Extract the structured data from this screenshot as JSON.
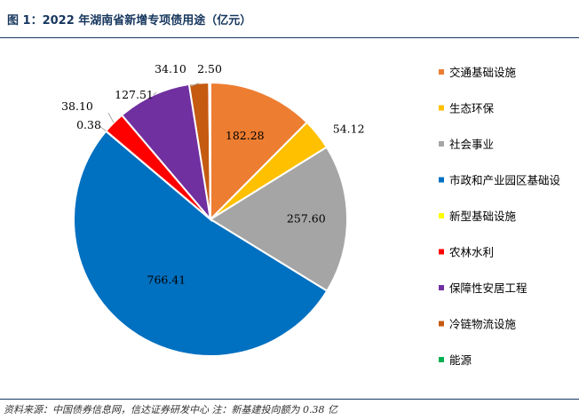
{
  "header": {
    "title": "图 1：2022 年湖南省新增专项债用途（亿元）"
  },
  "footer": {
    "source": "资料来源：中国债券信息网，信达证券研发中心  注：新基建投向额为 0.38 亿"
  },
  "chart_data": {
    "type": "pie",
    "title": "图 1：2022 年湖南省新增专项债用途（亿元）",
    "legend_position": "right",
    "slices": [
      {
        "name": "交通基础设施",
        "value": 182.28,
        "label": "182.28",
        "color": "#ed7d31"
      },
      {
        "name": "生态环保",
        "value": 54.12,
        "label": "54.12",
        "color": "#ffc000"
      },
      {
        "name": "社会事业",
        "value": 257.6,
        "label": "257.60",
        "color": "#a5a5a5"
      },
      {
        "name": "市政和产业园区基础设施",
        "value": 766.41,
        "label": "766.41",
        "color": "#0070c0"
      },
      {
        "name": "新型基础设施",
        "value": 0.38,
        "label": "0.38",
        "color": "#ffff00"
      },
      {
        "name": "农林水利",
        "value": 38.1,
        "label": "38.10",
        "color": "#ff0000"
      },
      {
        "name": "保障性安居工程",
        "value": 127.51,
        "label": "127.51",
        "color": "#7030a0"
      },
      {
        "name": "冷链物流设施",
        "value": 34.1,
        "label": "34.10",
        "color": "#c55a11"
      },
      {
        "name": "能源",
        "value": 2.5,
        "label": "2.50",
        "color": "#00b050"
      }
    ],
    "legend": [
      "交通基础设施",
      "生态环保",
      "社会事业",
      "市政和产业园区基础设施",
      "新型基础设施",
      "农林水利",
      "保障性安居工程",
      "冷链物流设施",
      "能源"
    ],
    "legend_visible_text": [
      "交通基础设施",
      "生态环保",
      "社会事业",
      "市政和产业园区基础设",
      "新型基础设施",
      "农林水利",
      "保障性安居工程",
      "冷链物流设施",
      "能源"
    ]
  }
}
